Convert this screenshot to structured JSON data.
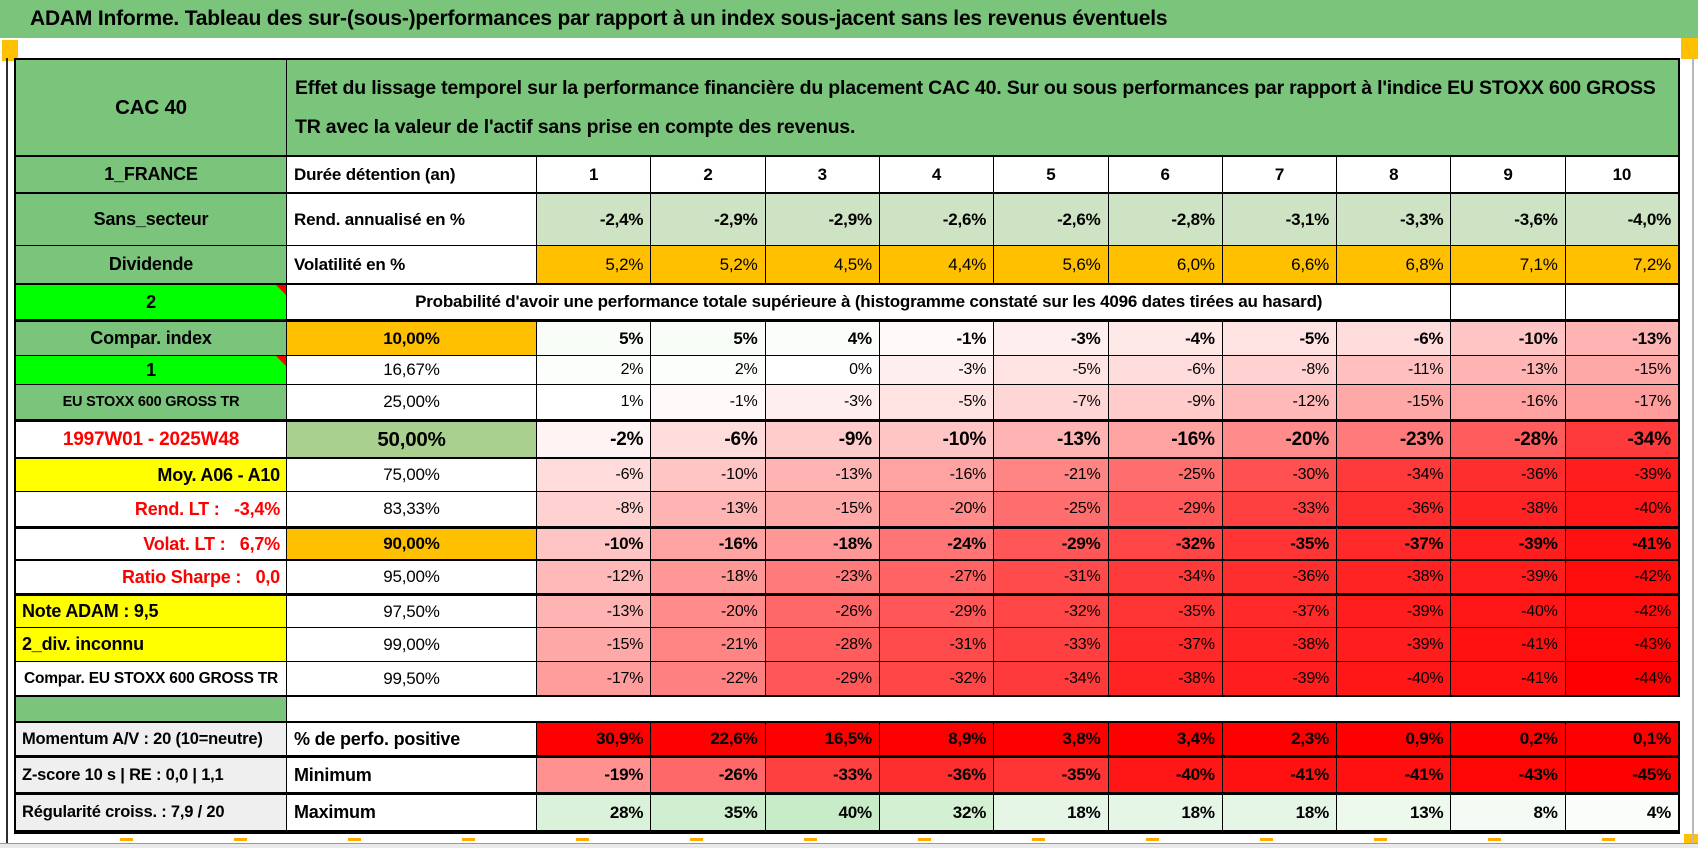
{
  "title": {
    "text": "ADAM Informe. Tableau des sur-(sous-)performances par rapport à un index sous-jacent sans les revenus éventuels"
  },
  "palette": {
    "header_green": "#7bc47c",
    "row_green": "#cde3c3",
    "orange": "#ffc000",
    "bright_green": "#00ff00",
    "yellow": "#ffff00",
    "green50": "#a9d08e",
    "gray": "#efefef",
    "red_text": "#ff0000",
    "solid_red": "#ff0000",
    "scale_red_max": "#ff0000",
    "scale_green_max": "#c8ecc8"
  },
  "table": {
    "rows": [
      {
        "cls": "bb2",
        "left": {
          "text": "CAC 40",
          "cls": "bg-green f20",
          "name": "asset-name"
        },
        "desc": "Effet du lissage temporel sur la performance financière du placement CAC 40. Sur ou sous performances par rapport à l'indice EU STOXX 600 GROSS TR avec la valeur de l'actif sans prise en compte des revenus."
      },
      {
        "cls": "bb2",
        "left": {
          "text": "1_FRANCE",
          "cls": "bg-green",
          "name": "region-label"
        },
        "head": {
          "text": "Durée détention (an)"
        },
        "values": [
          "1",
          "2",
          "3",
          "4",
          "5",
          "6",
          "7",
          "8",
          "9",
          "10"
        ],
        "mode": "plain",
        "vcls": "center bold f17"
      },
      {
        "left": {
          "text": "Sans_secteur",
          "cls": "bg-green",
          "name": "sector-label"
        },
        "head": {
          "text": "Rend. annualisé en %"
        },
        "values": [
          "-2,4%",
          "-2,9%",
          "-2,9%",
          "-2,6%",
          "-2,6%",
          "-2,8%",
          "-3,1%",
          "-3,3%",
          "-3,6%",
          "-4,0%"
        ],
        "mode": "lightgreen",
        "vcls": "bold f17"
      },
      {
        "cls": "bb2",
        "left": {
          "text": "Dividende",
          "cls": "bg-green",
          "name": "dividend-label"
        },
        "head": {
          "text": "Volatilité en %"
        },
        "values": [
          "5,2%",
          "5,2%",
          "4,5%",
          "4,4%",
          "5,6%",
          "6,0%",
          "6,6%",
          "6,8%",
          "7,1%",
          "7,2%"
        ],
        "mode": "orange",
        "vcls": "f17"
      },
      {
        "left": {
          "text": "2",
          "cls": "bg-bright note f18",
          "name": "flag-cell-2"
        },
        "span": {
          "text": "Probabilité d'avoir une performance totale supérieure à (histogramme constaté sur les 4096 dates tirées au hasard)",
          "cols": 9,
          "empty": 2
        }
      },
      {
        "cls": "bt2",
        "left": {
          "text": "Compar. index",
          "cls": "bg-green",
          "name": "compare-index-label"
        },
        "head": {
          "text": "10,00%",
          "cls": "bg-orange center"
        },
        "values": [
          "5%",
          "5%",
          "4%",
          "-1%",
          "-3%",
          "-4%",
          "-5%",
          "-6%",
          "-10%",
          "-13%"
        ],
        "mode": "scale",
        "vcls": "bold f17"
      },
      {
        "left": {
          "text": "1",
          "cls": "bg-bright note f18",
          "name": "flag-cell-1"
        },
        "head": {
          "text": "16,67%",
          "cls": "center normal"
        },
        "values": [
          "2%",
          "2%",
          "0%",
          "-3%",
          "-5%",
          "-6%",
          "-8%",
          "-11%",
          "-13%",
          "-15%"
        ],
        "mode": "scale"
      },
      {
        "left": {
          "text": "EU STOXX 600 GROSS TR",
          "cls": "bg-green f14",
          "name": "index-name-label"
        },
        "head": {
          "text": "25,00%",
          "cls": "center normal"
        },
        "values": [
          "1%",
          "-1%",
          "-3%",
          "-5%",
          "-7%",
          "-9%",
          "-12%",
          "-15%",
          "-16%",
          "-17%"
        ],
        "mode": "scale"
      },
      {
        "cls": "bt2 bb2",
        "left": {
          "text": "1997W01 - 2025W48",
          "cls": "red f19",
          "name": "period-label"
        },
        "head": {
          "text": "50,00%",
          "cls": "bg-green50 center f20"
        },
        "values": [
          "-2%",
          "-6%",
          "-9%",
          "-10%",
          "-13%",
          "-16%",
          "-20%",
          "-23%",
          "-28%",
          "-34%"
        ],
        "mode": "scale",
        "vcls": "bold f19"
      },
      {
        "left": {
          "text": "Moy. A06 - A10",
          "cls": "bg-yellow r f18",
          "name": "average-label"
        },
        "head": {
          "text": "75,00%",
          "cls": "center normal"
        },
        "values": [
          "-6%",
          "-10%",
          "-13%",
          "-16%",
          "-21%",
          "-25%",
          "-30%",
          "-34%",
          "-36%",
          "-39%"
        ],
        "mode": "scale"
      },
      {
        "left": {
          "text": "Rend. LT :   -3,4%",
          "cls": "red r f18",
          "name": "long-term-return-label"
        },
        "head": {
          "text": "83,33%",
          "cls": "center normal"
        },
        "values": [
          "-8%",
          "-13%",
          "-15%",
          "-20%",
          "-25%",
          "-29%",
          "-33%",
          "-36%",
          "-38%",
          "-40%"
        ],
        "mode": "scale"
      },
      {
        "cls": "bt2 bb2",
        "left": {
          "text": "Volat. LT :   6,7%",
          "cls": "red r f18",
          "name": "long-term-volatility-label"
        },
        "head": {
          "text": "90,00%",
          "cls": "bg-orange center"
        },
        "values": [
          "-10%",
          "-16%",
          "-18%",
          "-24%",
          "-29%",
          "-32%",
          "-35%",
          "-37%",
          "-39%",
          "-41%"
        ],
        "mode": "scale",
        "vcls": "bold f17"
      },
      {
        "left": {
          "text": "Ratio Sharpe :   0,0",
          "cls": "red r f18",
          "name": "sharpe-ratio-label"
        },
        "head": {
          "text": "95,00%",
          "cls": "center normal"
        },
        "values": [
          "-12%",
          "-18%",
          "-23%",
          "-27%",
          "-31%",
          "-34%",
          "-36%",
          "-38%",
          "-39%",
          "-42%"
        ],
        "mode": "scale"
      },
      {
        "cls": "bt2",
        "left": {
          "text": "Note ADAM : 9,5",
          "cls": "bg-yellow l f18",
          "name": "adam-score-label"
        },
        "head": {
          "text": "97,50%",
          "cls": "center normal"
        },
        "values": [
          "-13%",
          "-20%",
          "-26%",
          "-29%",
          "-32%",
          "-35%",
          "-37%",
          "-39%",
          "-40%",
          "-42%"
        ],
        "mode": "scale"
      },
      {
        "left": {
          "text": "2_div. inconnu",
          "cls": "bg-yellow l f18",
          "name": "dividend-unknown-label"
        },
        "head": {
          "text": "99,00%",
          "cls": "center normal"
        },
        "values": [
          "-15%",
          "-21%",
          "-28%",
          "-31%",
          "-33%",
          "-37%",
          "-38%",
          "-39%",
          "-41%",
          "-43%"
        ],
        "mode": "scale"
      },
      {
        "cls": "bb2",
        "left": {
          "text": "Compar. EU STOXX 600 GROSS TR",
          "cls": "f15",
          "name": "compare-index-full-label"
        },
        "head": {
          "text": "99,50%",
          "cls": "center normal"
        },
        "values": [
          "-17%",
          "-22%",
          "-29%",
          "-32%",
          "-34%",
          "-38%",
          "-39%",
          "-40%",
          "-41%",
          "-44%"
        ],
        "mode": "scale"
      },
      {
        "gap": true
      },
      {
        "cls": "bt2",
        "left": {
          "text": "Momentum A/V : 20 (10=neutre)",
          "cls": "bg-gray l f16",
          "name": "momentum-label"
        },
        "head": {
          "text": "% de perfo. positive",
          "cls": "f18"
        },
        "values": [
          "30,9%",
          "22,6%",
          "16,5%",
          "8,9%",
          "3,8%",
          "3,4%",
          "2,3%",
          "0,9%",
          "0,2%",
          "0,1%"
        ],
        "mode": "solidred",
        "vcls": "bold f17"
      },
      {
        "cls": "bt2",
        "left": {
          "text": "Z-score 10 s | RE : 0,0 | 1,1",
          "cls": "bg-gray l f16",
          "name": "zscore-label"
        },
        "head": {
          "text": "Minimum",
          "cls": "f18"
        },
        "values": [
          "-19%",
          "-26%",
          "-33%",
          "-36%",
          "-35%",
          "-40%",
          "-41%",
          "-41%",
          "-43%",
          "-45%"
        ],
        "mode": "scale",
        "vcls": "bold f17"
      },
      {
        "cls": "bt2",
        "left": {
          "text": "Régularité croiss. : 7,9 / 20",
          "cls": "bg-gray l f16",
          "name": "regularity-label"
        },
        "head": {
          "text": "Maximum",
          "cls": "f18"
        },
        "values": [
          "28%",
          "35%",
          "40%",
          "32%",
          "18%",
          "18%",
          "18%",
          "13%",
          "8%",
          "4%"
        ],
        "mode": "scale",
        "vcls": "bold f17"
      }
    ]
  }
}
